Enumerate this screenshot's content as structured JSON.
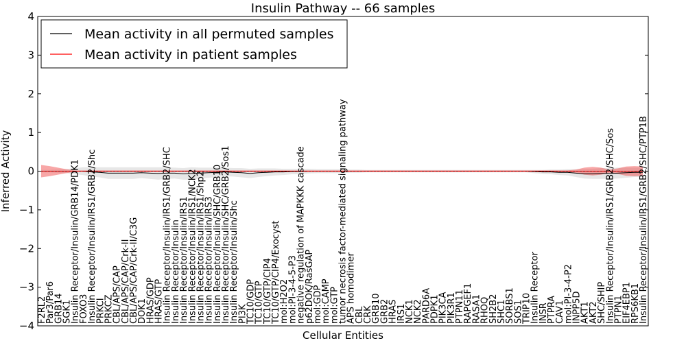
{
  "chart_data": {
    "type": "line",
    "title": "Insulin Pathway -- 66 samples",
    "xlabel": "Cellular Entities",
    "ylabel": "Inferred Activity",
    "ylim": [
      -4,
      4
    ],
    "yticks": [
      "4",
      "3",
      "2",
      "1",
      "0",
      "−1",
      "−2",
      "−3",
      "−4"
    ],
    "legend_position": "top-left",
    "legend": [
      {
        "label": "Mean activity in all permuted samples",
        "color": "#000000"
      },
      {
        "label": "Mean activity in patient samples",
        "color": "#ff0000"
      }
    ],
    "categories": [
      "F2RL2",
      "Par3/Par6",
      "GRB14",
      "SGK1",
      "Insulin Receptor/Insulin/GRB14/PDK1",
      "FOXO3",
      "Insulin Receptor/Insulin/IRS1/GRB2/Shc",
      "PRKCI",
      "PRKCZ",
      "CBL/APS/CAP",
      "CBL/APS/CAP/Crk-II",
      "CBL/APS/CAP/Crk-II/C3G",
      "DOK1",
      "HRAS/GDP",
      "HRAS/GTP",
      "Insulin Receptor/Insulin/IRS1/GRB2/SHC",
      "Insulin Receptor/Insulin",
      "Insulin Receptor/Insulin/IRS1",
      "Insulin Receptor/Insulin/IRS1/NCK2",
      "Insulin Receptor/Insulin/IRS1/Shp2",
      "Insulin Receptor/Insulin/IRS3",
      "Insulin Receptor/Insulin/SHC/GRB10",
      "Insulin Receptor/Insulin/SHC/GRB2/Sos1",
      "Insulin Receptor/Insulin/Shc",
      "PI3K",
      "TC10/GDP",
      "TC10/GTP",
      "TC10/GTP/CIP4",
      "TC10/GTP/CIP4/Exocyst",
      "mol:H2O2",
      "mol:PI-3-4-5-P3",
      "negative regulation of MAPKKK cascade",
      "p62DOK/RasGAP",
      "mol:GDP",
      "mol:CAMP",
      "mol:GTP",
      "tumor necrosis factor-mediated signaling pathway",
      "APS homodimer",
      "CBL",
      "CRK",
      "GRB10",
      "GRB2",
      "HRAS",
      "IRS1",
      "NCK1",
      "NCK2",
      "PARD6A",
      "PDPK1",
      "PIK3CA",
      "PIK3R1",
      "PTPN11",
      "RAPGEF1",
      "RASA1",
      "RHOQ",
      "SH2B2",
      "SHC1",
      "SORBS1",
      "SOS1",
      "TRIP10",
      "Insulin Receptor",
      "INSR",
      "PTPRA",
      "CAV1",
      "mol:PI-3-4-P2",
      "INPP5D",
      "AKT1",
      "AKT2",
      "SHC/SHIP",
      "Insulin Receptor/Insulin/IRS1/GRB2/SHC/Sos",
      "PTPN1",
      "EIF4EBP1",
      "RPS6KB1",
      "Insulin Receptor/Insulin/IRS1/GRB2/SHC/PTP1B"
    ],
    "series": [
      {
        "name": "Mean activity in all permuted samples",
        "color": "#000000",
        "values": [
          0,
          0,
          0,
          0,
          0,
          0,
          -0.02,
          -0.03,
          -0.05,
          -0.05,
          -0.05,
          -0.05,
          -0.04,
          -0.05,
          -0.06,
          -0.05,
          -0.05,
          -0.07,
          -0.06,
          -0.05,
          -0.04,
          -0.03,
          -0.02,
          -0.03,
          -0.04,
          -0.06,
          -0.04,
          -0.03,
          -0.02,
          -0.02,
          -0.01,
          -0.01,
          0,
          0,
          0,
          0,
          0,
          0,
          0,
          0,
          0,
          0,
          0,
          0,
          0,
          0,
          0,
          0,
          0,
          0,
          0,
          0,
          0,
          0,
          0,
          0,
          0,
          0,
          0,
          -0.01,
          -0.02,
          -0.02,
          -0.03,
          -0.03,
          -0.05,
          -0.07,
          -0.07,
          -0.06,
          -0.06,
          -0.05,
          -0.04,
          -0.03,
          -0.03
        ],
        "band": [
          0.03,
          0.03,
          0.04,
          0.05,
          0.08,
          0.1,
          0.12,
          0.13,
          0.15,
          0.15,
          0.15,
          0.15,
          0.14,
          0.15,
          0.16,
          0.15,
          0.14,
          0.15,
          0.16,
          0.14,
          0.13,
          0.12,
          0.11,
          0.11,
          0.12,
          0.12,
          0.11,
          0.1,
          0.09,
          0.08,
          0.07,
          0.07,
          0.06,
          0.05,
          0.05,
          0.05,
          0.05,
          0.04,
          0.04,
          0.03,
          0.03,
          0.03,
          0.03,
          0.03,
          0.03,
          0.03,
          0.03,
          0.03,
          0.03,
          0.03,
          0.03,
          0.03,
          0.03,
          0.03,
          0.03,
          0.03,
          0.03,
          0.03,
          0.03,
          0.04,
          0.05,
          0.06,
          0.07,
          0.08,
          0.1,
          0.12,
          0.13,
          0.14,
          0.14,
          0.14,
          0.13,
          0.12,
          0.12
        ]
      },
      {
        "name": "Mean activity in patient samples",
        "color": "#ff0000",
        "values": [
          0,
          0,
          0,
          0,
          0,
          0,
          0,
          0,
          0,
          0,
          0,
          0,
          0,
          0,
          0,
          0,
          0,
          0,
          0,
          0,
          0,
          0,
          0,
          0,
          0,
          0,
          0,
          0,
          0,
          0,
          0,
          0,
          0,
          0,
          0,
          0,
          0,
          0,
          0,
          0,
          0,
          0,
          0,
          0,
          0,
          0,
          0,
          0,
          0,
          0,
          0,
          0,
          0,
          0,
          0,
          0,
          0,
          0,
          0,
          0,
          0,
          0,
          0,
          0,
          0,
          0,
          0,
          0,
          0,
          0,
          0,
          0,
          0
        ],
        "band": [
          0.16,
          0.13,
          0.09,
          0.05,
          0.02,
          0.02,
          0.02,
          0.02,
          0.02,
          0.02,
          0.02,
          0.02,
          0.02,
          0.02,
          0.02,
          0.02,
          0.02,
          0.02,
          0.02,
          0.02,
          0.02,
          0.02,
          0.02,
          0.02,
          0.02,
          0.02,
          0.02,
          0.02,
          0.02,
          0.02,
          0.02,
          0.02,
          0.02,
          0.02,
          0.02,
          0.02,
          0.02,
          0.02,
          0.02,
          0.02,
          0.02,
          0.02,
          0.02,
          0.02,
          0.02,
          0.02,
          0.02,
          0.02,
          0.02,
          0.02,
          0.02,
          0.02,
          0.02,
          0.02,
          0.02,
          0.02,
          0.02,
          0.02,
          0.02,
          0.02,
          0.02,
          0.02,
          0.02,
          0.02,
          0.04,
          0.09,
          0.11,
          0.09,
          0.04,
          0.07,
          0.12,
          0.13,
          0.12
        ]
      }
    ]
  }
}
